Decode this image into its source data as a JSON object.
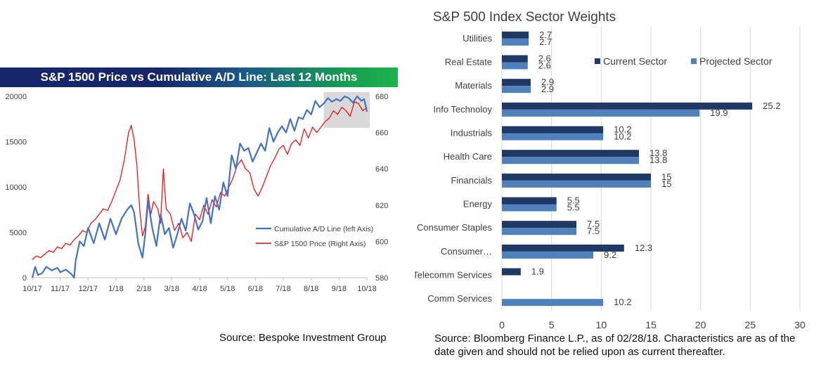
{
  "left_chart": {
    "title": "S&P 1500 Price vs Cumulative A/D Line: Last 12 Months",
    "source": "Source: Bespoke Investment Group",
    "colors": {
      "ad_line": "#4472c4",
      "price": "#ff0000",
      "highlight": "#d9d9d9"
    },
    "chart_data": {
      "type": "line",
      "x_ticks": [
        "10/17",
        "11/17",
        "12/17",
        "1/18",
        "2/18",
        "3/18",
        "4/18",
        "5/18",
        "6/18",
        "7/18",
        "8/18",
        "9/18",
        "10/18"
      ],
      "y_left_ticks": [
        "0",
        "5000",
        "10000",
        "15000",
        "20000"
      ],
      "y_left_lim": [
        0,
        20000
      ],
      "y_right_ticks": [
        "580",
        "600",
        "620",
        "640",
        "660",
        "680"
      ],
      "y_right_lim": [
        580,
        680
      ],
      "highlight_x_range": [
        10.45,
        12.0
      ],
      "series": [
        {
          "name": "Cumulative A/D Line (left Axis)",
          "axis": "left",
          "x": [
            0.0,
            0.1,
            0.2,
            0.35,
            0.5,
            0.7,
            0.9,
            1.0,
            1.2,
            1.4,
            1.5,
            1.55,
            1.7,
            1.85,
            2.0,
            2.2,
            2.4,
            2.6,
            2.8,
            3.0,
            3.2,
            3.4,
            3.55,
            3.65,
            3.8,
            3.95,
            4.05,
            4.15,
            4.3,
            4.45,
            4.6,
            4.75,
            4.9,
            5.05,
            5.2,
            5.35,
            5.5,
            5.65,
            5.8,
            5.95,
            6.1,
            6.25,
            6.4,
            6.55,
            6.7,
            6.85,
            7.0,
            7.15,
            7.3,
            7.45,
            7.6,
            7.75,
            7.9,
            8.05,
            8.2,
            8.35,
            8.5,
            8.65,
            8.8,
            8.95,
            9.1,
            9.25,
            9.4,
            9.55,
            9.7,
            9.85,
            10.0,
            10.15,
            10.3,
            10.45,
            10.6,
            10.75,
            10.9,
            11.05,
            11.2,
            11.35,
            11.5,
            11.65,
            11.8,
            11.9,
            12.0
          ],
          "y": [
            0,
            1200,
            300,
            500,
            1200,
            800,
            1100,
            600,
            900,
            400,
            0,
            1800,
            4000,
            3500,
            5500,
            3800,
            6000,
            4200,
            6500,
            4800,
            6500,
            7500,
            8000,
            7200,
            3800,
            2200,
            4800,
            8500,
            5500,
            3500,
            7000,
            4800,
            5500,
            3300,
            4800,
            6500,
            5200,
            8200,
            7000,
            5300,
            6200,
            8800,
            6000,
            9000,
            7500,
            10500,
            9000,
            13500,
            12000,
            14800,
            14000,
            14300,
            12800,
            13800,
            14800,
            14000,
            16500,
            15000,
            16000,
            16700,
            16000,
            17500,
            16200,
            17700,
            17500,
            18500,
            18000,
            19500,
            18800,
            19200,
            19800,
            19400,
            19700,
            19500,
            20000,
            19800,
            19300,
            20000,
            19500,
            19700,
            18300
          ]
        },
        {
          "name": "S&P 1500 Price (Right Axis)",
          "axis": "right",
          "x": [
            0.0,
            0.15,
            0.3,
            0.45,
            0.6,
            0.75,
            0.9,
            1.05,
            1.2,
            1.35,
            1.5,
            1.65,
            1.8,
            1.95,
            2.1,
            2.25,
            2.4,
            2.55,
            2.7,
            2.85,
            3.0,
            3.15,
            3.3,
            3.45,
            3.55,
            3.65,
            3.75,
            3.85,
            3.95,
            4.05,
            4.15,
            4.25,
            4.35,
            4.5,
            4.6,
            4.7,
            4.8,
            4.95,
            5.1,
            5.25,
            5.4,
            5.55,
            5.7,
            5.85,
            6.0,
            6.15,
            6.3,
            6.45,
            6.6,
            6.75,
            6.9,
            7.05,
            7.2,
            7.35,
            7.5,
            7.65,
            7.8,
            7.95,
            8.1,
            8.25,
            8.4,
            8.55,
            8.7,
            8.85,
            9.0,
            9.15,
            9.3,
            9.45,
            9.6,
            9.75,
            9.9,
            10.05,
            10.2,
            10.35,
            10.5,
            10.65,
            10.8,
            10.95,
            11.1,
            11.25,
            11.4,
            11.55,
            11.7,
            11.85,
            12.0
          ],
          "y": [
            590,
            592,
            591,
            593,
            595,
            594,
            597,
            596,
            599,
            598,
            601,
            603,
            606,
            605,
            610,
            612,
            615,
            618,
            617,
            622,
            628,
            634,
            645,
            660,
            664,
            656,
            642,
            618,
            603,
            608,
            626,
            615,
            622,
            618,
            610,
            640,
            618,
            615,
            606,
            610,
            602,
            605,
            600,
            615,
            612,
            620,
            615,
            623,
            619,
            627,
            625,
            630,
            635,
            642,
            645,
            640,
            638,
            629,
            625,
            630,
            636,
            642,
            646,
            651,
            653,
            648,
            654,
            656,
            653,
            662,
            657,
            663,
            660,
            663,
            666,
            668,
            672,
            670,
            674,
            672,
            669,
            677,
            676,
            672,
            674
          ]
        }
      ]
    }
  },
  "right_chart": {
    "title": "S&P 500 Index Sector Weights",
    "source": "Source: Bloomberg Finance L.P., as of 02/28/18.  Characteristics are as of the date given and should not be relied upon as current thereafter.",
    "colors": {
      "current": "#1f3864",
      "projected": "#4f81bd",
      "grid": "#d9d9d9"
    },
    "chart_data": {
      "type": "bar",
      "orientation": "horizontal",
      "categories": [
        "Utilities",
        "Real Estate",
        "Materials",
        "Info Technoloy",
        "Industrials",
        "Health Care",
        "Financials",
        "Energy",
        "Consumer Staples",
        "Consumer…",
        "Telecomm Services",
        "Comm Services"
      ],
      "x_ticks": [
        "0",
        "5",
        "10",
        "15",
        "20",
        "25",
        "30"
      ],
      "xlim": [
        0,
        30
      ],
      "series": [
        {
          "name": "Current Sector",
          "values": [
            2.7,
            2.6,
            2.9,
            25.2,
            10.2,
            13.8,
            15,
            5.5,
            7.5,
            12.3,
            1.9,
            null
          ],
          "labels": [
            "2.7",
            "2.6",
            "2.9",
            "25.2",
            "10.2",
            "13.8",
            "15",
            "5.5",
            "7.5",
            "12.3",
            "1.9",
            ""
          ]
        },
        {
          "name": "Projected Sector",
          "values": [
            2.7,
            2.6,
            2.9,
            19.9,
            10.2,
            13.8,
            15,
            5.5,
            7.5,
            9.2,
            null,
            10.2
          ],
          "labels": [
            "2.7",
            "2.6",
            "2.9",
            "19.9",
            "10.2",
            "13.8",
            "15",
            "5.5",
            "7.5",
            "9.2",
            "",
            "10.2"
          ]
        }
      ],
      "legend_position": "top-right"
    }
  }
}
